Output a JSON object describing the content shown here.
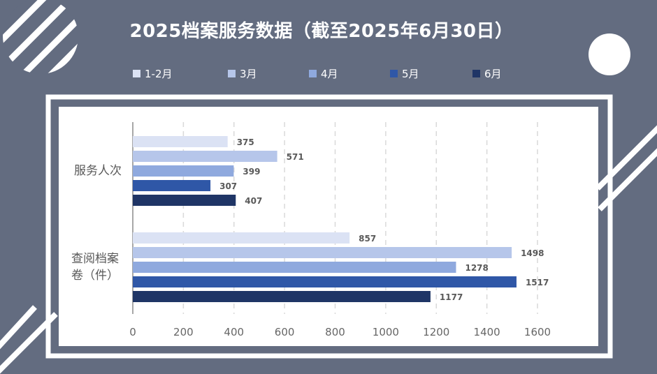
{
  "title": "2025档案服务数据（截至2025年6月30日）",
  "colors": {
    "background": "#636c80",
    "panel": "#ffffff",
    "series": [
      "#dbe2f4",
      "#b6c6ea",
      "#8fa9de",
      "#2f57a7",
      "#1f3566"
    ]
  },
  "chart_data": {
    "type": "bar",
    "orientation": "horizontal",
    "title": "2025档案服务数据（截至2025年6月30日）",
    "categories": [
      "服务人次",
      "查阅档案卷（件）"
    ],
    "series": [
      {
        "name": "1-2月",
        "values": [
          375,
          857
        ]
      },
      {
        "name": "3月",
        "values": [
          571,
          1498
        ]
      },
      {
        "name": "4月",
        "values": [
          399,
          1278
        ]
      },
      {
        "name": "5月",
        "values": [
          307,
          1517
        ]
      },
      {
        "name": "6月",
        "values": [
          407,
          1177
        ]
      }
    ],
    "xlim": [
      0,
      1600
    ],
    "x_ticks": [
      "0",
      "200",
      "400",
      "600",
      "800",
      "1000",
      "1200",
      "1400",
      "1600"
    ],
    "grid": "vertical dashed",
    "legend_position": "top",
    "data_labels": true
  }
}
